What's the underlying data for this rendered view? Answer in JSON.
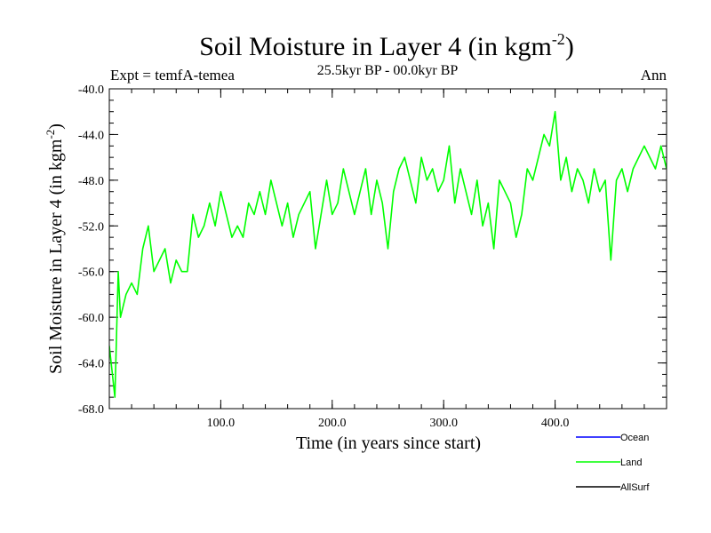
{
  "chart_data": {
    "type": "line",
    "title": "Soil Moisture in Layer 4 (in kgm",
    "title_sup": "-2",
    "title_close": ")",
    "subtitle_left": "Expt = temfA-temea",
    "subtitle_center": "25.5kyr BP - 00.0kyr BP",
    "subtitle_right": "Ann",
    "xlabel": "Time (in years since start)",
    "ylabel": "Soil Moisture in Layer 4 (in kgm",
    "ylabel_sup": "-2",
    "ylabel_close": ")",
    "xlim": [
      0,
      500
    ],
    "ylim": [
      -68,
      -40
    ],
    "x_ticks": [
      {
        "value": 100,
        "label": "100.0"
      },
      {
        "value": 200,
        "label": "200.0"
      },
      {
        "value": 300,
        "label": "300.0"
      },
      {
        "value": 400,
        "label": "400.0"
      }
    ],
    "y_ticks": [
      {
        "value": -40,
        "label": "-40.0"
      },
      {
        "value": -44,
        "label": "-44.0"
      },
      {
        "value": -48,
        "label": "-48.0"
      },
      {
        "value": -52,
        "label": "-52.0"
      },
      {
        "value": -56,
        "label": "-56.0"
      },
      {
        "value": -60,
        "label": "-60.0"
      },
      {
        "value": -64,
        "label": "-64.0"
      },
      {
        "value": -68,
        "label": "-68.0"
      }
    ],
    "series": [
      {
        "name": "Land",
        "color": "#00ff00",
        "x": [
          0,
          5,
          8,
          10,
          15,
          20,
          25,
          30,
          35,
          40,
          45,
          50,
          55,
          60,
          65,
          70,
          75,
          80,
          85,
          90,
          95,
          100,
          105,
          110,
          115,
          120,
          125,
          130,
          135,
          140,
          145,
          150,
          155,
          160,
          165,
          170,
          175,
          180,
          185,
          190,
          195,
          200,
          205,
          210,
          215,
          220,
          225,
          230,
          235,
          240,
          245,
          250,
          255,
          260,
          265,
          270,
          275,
          280,
          285,
          290,
          295,
          300,
          305,
          310,
          315,
          320,
          325,
          330,
          335,
          340,
          345,
          350,
          355,
          360,
          365,
          370,
          375,
          380,
          385,
          390,
          395,
          400,
          405,
          410,
          415,
          420,
          425,
          430,
          435,
          440,
          445,
          450,
          455,
          460,
          465,
          470,
          475,
          480,
          485,
          490,
          495,
          500
        ],
        "values": [
          -62.5,
          -67,
          -56,
          -60,
          -58,
          -57,
          -58,
          -54,
          -52,
          -56,
          -55,
          -54,
          -57,
          -55,
          -56,
          -56,
          -51,
          -53,
          -52,
          -50,
          -52,
          -49,
          -51,
          -53,
          -52,
          -53,
          -50,
          -51,
          -49,
          -51,
          -48,
          -50,
          -52,
          -50,
          -53,
          -51,
          -50,
          -49,
          -54,
          -51,
          -48,
          -51,
          -50,
          -47,
          -49,
          -51,
          -49,
          -47,
          -51,
          -48,
          -50,
          -54,
          -49,
          -47,
          -46,
          -48,
          -50,
          -46,
          -48,
          -47,
          -49,
          -48,
          -45,
          -50,
          -47,
          -49,
          -51,
          -48,
          -52,
          -50,
          -54,
          -48,
          -49,
          -50,
          -53,
          -51,
          -47,
          -48,
          -46,
          -44,
          -45,
          -42,
          -48,
          -46,
          -49,
          -47,
          -48,
          -50,
          -47,
          -49,
          -48,
          -55,
          -48,
          -47,
          -49,
          -47,
          -46,
          -45,
          -46,
          -47,
          -45,
          -47
        ]
      }
    ],
    "legend": [
      {
        "name": "Ocean",
        "color": "#0000ff"
      },
      {
        "name": "Land",
        "color": "#00ff00"
      },
      {
        "name": "AllSurf",
        "color": "#000000"
      }
    ],
    "legend_position": "bottom-right"
  }
}
